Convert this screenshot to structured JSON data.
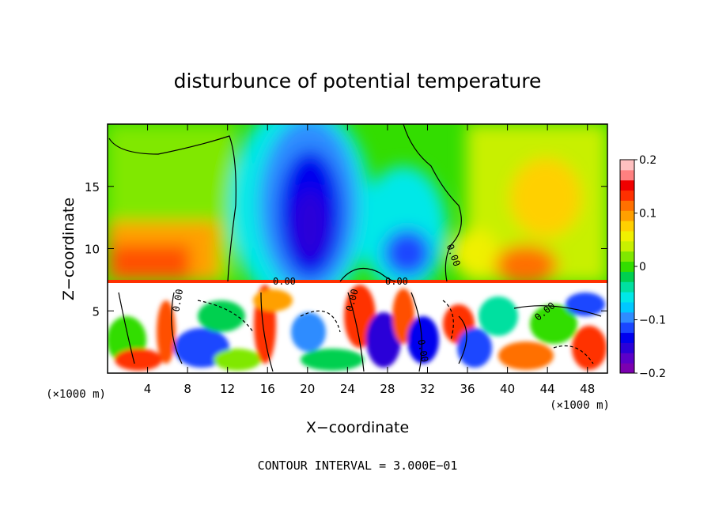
{
  "chart_data": {
    "type": "heatmap",
    "title": "disturbunce of potential temperature",
    "xlabel": "X−coordinate",
    "ylabel": "Z−coordinate",
    "x_unit_left": "(×1000 m)",
    "x_unit_right": "(×1000 m)",
    "xlim": [
      0,
      50
    ],
    "ylim": [
      0,
      20
    ],
    "x_ticks": [
      4,
      8,
      12,
      16,
      20,
      24,
      28,
      32,
      36,
      40,
      44,
      48
    ],
    "y_ticks": [
      5,
      10,
      15
    ],
    "colorbar": {
      "range": [
        -0.2,
        0.2
      ],
      "tick_labels": [
        "0.2",
        "0.1",
        "0",
        "−0.1",
        "−0.2"
      ],
      "tick_values": [
        0.2,
        0.1,
        0,
        -0.1,
        -0.2
      ],
      "colors": [
        "#7b00b0",
        "#5b00c8",
        "#2a00d8",
        "#0000ee",
        "#1a46ff",
        "#2f8cff",
        "#00c8ff",
        "#00e8e8",
        "#00e0a0",
        "#00d050",
        "#33dd00",
        "#80e800",
        "#c8f000",
        "#f0f000",
        "#ffd000",
        "#ffa000",
        "#ff7000",
        "#ff3000",
        "#f00000",
        "#ff8080",
        "#ffc0c0"
      ]
    },
    "contour_labels": [
      "0.00",
      "0.00",
      "0.00",
      "0.00",
      "0.00",
      "0.00",
      "0.00"
    ],
    "footer": "CONTOUR INTERVAL = 3.000E−01"
  }
}
